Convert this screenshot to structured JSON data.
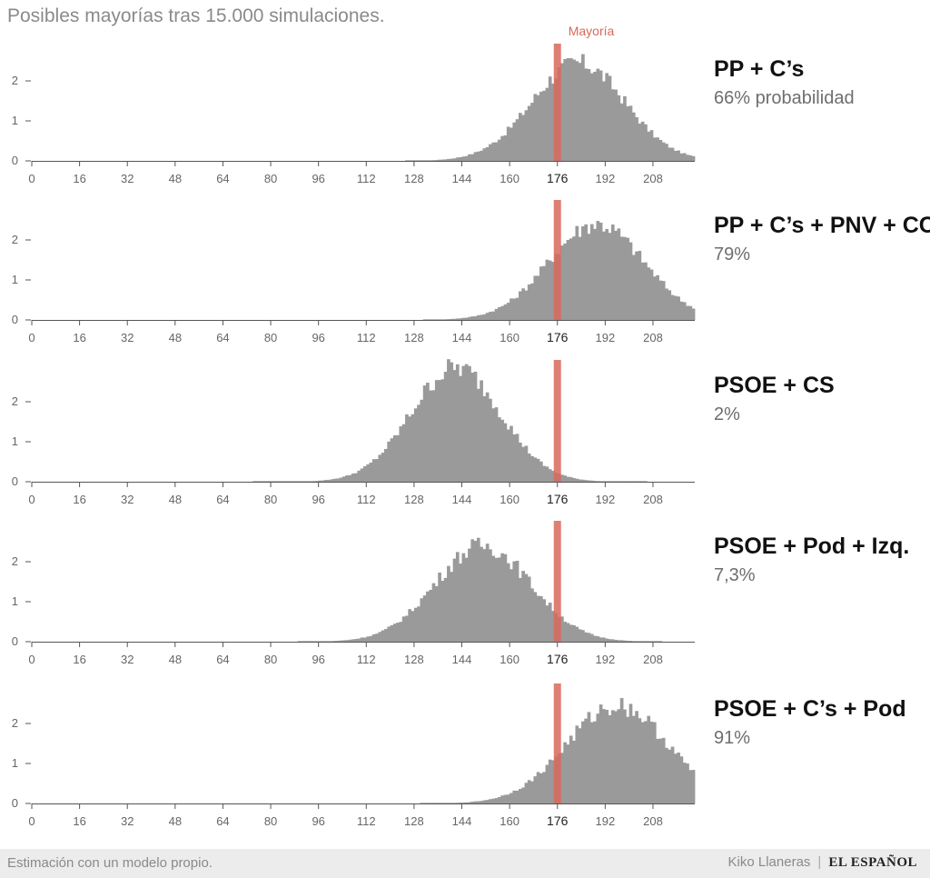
{
  "title": "Posibles mayorías tras 15.000 simulaciones.",
  "majority_label": "Mayoría",
  "footer": {
    "note": "Estimación con un modelo propio.",
    "author": "Kiko Llaneras",
    "separator": "|",
    "brand": "EL ESPAÑOL"
  },
  "colors": {
    "bars": "#9a9a9a",
    "majority": "#d9685a",
    "axis": "#555555"
  },
  "chart_data": [
    {
      "type": "bar",
      "name": "PP + C’s",
      "probability": "66% probabilidad",
      "x_ticks": [
        0,
        16,
        32,
        48,
        64,
        80,
        96,
        112,
        128,
        144,
        160,
        176,
        192,
        208
      ],
      "xlim": [
        0,
        222
      ],
      "ylim": [
        0,
        3
      ],
      "y_ticks": [
        0,
        1,
        2
      ],
      "majority": 176,
      "distribution": {
        "mean": 183,
        "sd": 15.5,
        "peak": 2.45,
        "low": 125,
        "high": 222
      }
    },
    {
      "type": "bar",
      "name": "PP + C’s + PNV + CC",
      "probability": "79%",
      "x_ticks": [
        0,
        16,
        32,
        48,
        64,
        80,
        96,
        112,
        128,
        144,
        160,
        176,
        192,
        208
      ],
      "xlim": [
        0,
        222
      ],
      "ylim": [
        0,
        3
      ],
      "y_ticks": [
        0,
        1,
        2
      ],
      "majority": 176,
      "distribution": {
        "mean": 189,
        "sd": 16,
        "peak": 2.4,
        "low": 131,
        "high": 222
      }
    },
    {
      "type": "bar",
      "name": "PSOE + CS",
      "probability": "2%",
      "x_ticks": [
        0,
        16,
        32,
        48,
        64,
        80,
        96,
        112,
        128,
        144,
        160,
        176,
        192,
        208
      ],
      "xlim": [
        0,
        222
      ],
      "ylim": [
        0,
        3
      ],
      "y_ticks": [
        0,
        1,
        2
      ],
      "majority": 176,
      "distribution": {
        "mean": 142,
        "sd": 15,
        "peak": 2.85,
        "low": 74,
        "high": 206
      }
    },
    {
      "type": "bar",
      "name": "PSOE + Pod + Izq.",
      "probability": "7,3%",
      "x_ticks": [
        0,
        16,
        32,
        48,
        64,
        80,
        96,
        112,
        128,
        144,
        160,
        176,
        192,
        208
      ],
      "xlim": [
        0,
        222
      ],
      "ylim": [
        0,
        3
      ],
      "y_ticks": [
        0,
        1,
        2
      ],
      "majority": 176,
      "distribution": {
        "mean": 151,
        "sd": 16,
        "peak": 2.4,
        "low": 89,
        "high": 211
      }
    },
    {
      "type": "bar",
      "name": "PSOE + C’s + Pod",
      "probability": "91%",
      "x_ticks": [
        0,
        16,
        32,
        48,
        64,
        80,
        96,
        112,
        128,
        144,
        160,
        176,
        192,
        208
      ],
      "xlim": [
        0,
        222
      ],
      "ylim": [
        0,
        3
      ],
      "y_ticks": [
        0,
        1,
        2
      ],
      "majority": 176,
      "distribution": {
        "mean": 196,
        "sd": 17,
        "peak": 2.45,
        "low": 130,
        "high": 222
      }
    }
  ]
}
